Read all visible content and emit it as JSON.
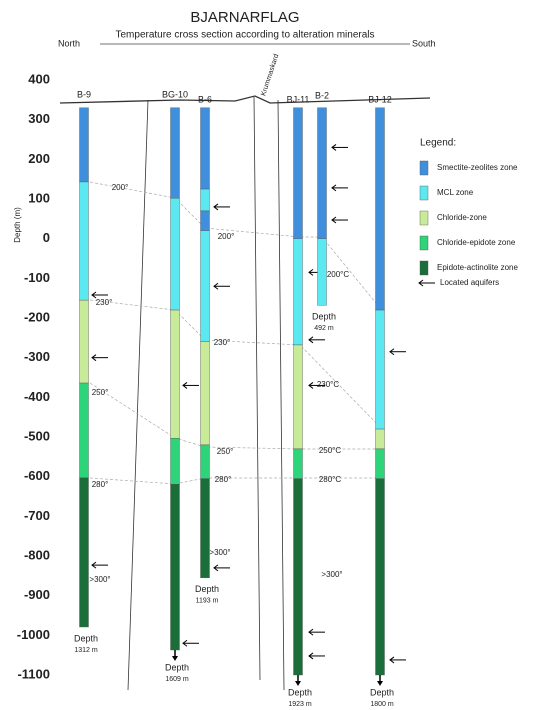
{
  "chart_data": {
    "type": "well-section",
    "title": "BJARNARFLAG",
    "subtitle": "Temperature cross section according to alteration minerals",
    "left_label": "North",
    "right_label": "South",
    "fault_label": "Krummaskard",
    "ylabel": "Depth (m)",
    "ylim": [
      -1100,
      400
    ],
    "yticks": [
      400,
      300,
      200,
      100,
      0,
      -100,
      -200,
      -300,
      -400,
      -500,
      -600,
      -700,
      -800,
      -900,
      -1000,
      -1100
    ],
    "legend_title": "Legend:",
    "zones": [
      {
        "name": "Smectite-zeolites zone",
        "color": "#3f8fdc"
      },
      {
        "name": "MCL zone",
        "color": "#5ce8f0"
      },
      {
        "name": "Chloride-zone",
        "color": "#c8eb9a"
      },
      {
        "name": "Chloride-epidote zone",
        "color": "#2ed47a"
      },
      {
        "name": "Epidote-actinolite zone",
        "color": "#1a6e3a"
      }
    ],
    "aquifer_label": "Located aquifers",
    "wells": [
      {
        "name": "B-9",
        "depth_word": "Depth",
        "total_depth": "1312 m",
        "arrow": false,
        "intervals": [
          {
            "top": 330,
            "bottom": 143,
            "color": "#3f8fdc"
          },
          {
            "top": 143,
            "bottom": -155,
            "color": "#5ce8f0"
          },
          {
            "top": -155,
            "bottom": -364,
            "color": "#c8eb9a"
          },
          {
            "top": -364,
            "bottom": -603,
            "color": "#2ed47a"
          },
          {
            "top": -603,
            "bottom": -979,
            "color": "#1a6e3a"
          }
        ],
        "aquifers": [
          -142,
          -300,
          -823
        ]
      },
      {
        "name": "BG-10",
        "depth_word": "Depth",
        "total_depth": "1609 m",
        "arrow": true,
        "intervals": [
          {
            "top": 330,
            "bottom": 102,
            "color": "#3f8fdc"
          },
          {
            "top": 102,
            "bottom": -180,
            "color": "#5ce8f0"
          },
          {
            "top": -180,
            "bottom": -503,
            "color": "#c8eb9a"
          },
          {
            "top": -503,
            "bottom": -619,
            "color": "#2ed47a"
          },
          {
            "top": -619,
            "bottom": -1037,
            "color": "#1a6e3a"
          }
        ],
        "aquifers": [
          -370,
          -1020
        ]
      },
      {
        "name": "B-6",
        "depth_word": "Depth",
        "total_depth": "1193 m",
        "arrow": false,
        "intervals": [
          {
            "top": 330,
            "bottom": 125,
            "color": "#3f8fdc"
          },
          {
            "top": 125,
            "bottom": 70,
            "color": "#5ce8f0"
          },
          {
            "top": 70,
            "bottom": 20,
            "color": "#3f8fdc"
          },
          {
            "top": 20,
            "bottom": -260,
            "color": "#5ce8f0"
          },
          {
            "top": -260,
            "bottom": -520,
            "color": "#c8eb9a"
          },
          {
            "top": -520,
            "bottom": -605,
            "color": "#2ed47a"
          },
          {
            "top": -605,
            "bottom": -855,
            "color": "#1a6e3a"
          }
        ],
        "aquifers": [
          80,
          -120,
          -830
        ]
      },
      {
        "name": "BJ-11",
        "depth_word": "Depth",
        "total_depth": "1923 m",
        "arrow": true,
        "intervals": [
          {
            "top": 330,
            "bottom": 0,
            "color": "#3f8fdc"
          },
          {
            "top": 0,
            "bottom": -268,
            "color": "#5ce8f0"
          },
          {
            "top": -268,
            "bottom": -530,
            "color": "#c8eb9a"
          },
          {
            "top": -530,
            "bottom": -605,
            "color": "#2ed47a"
          },
          {
            "top": -605,
            "bottom": -1100,
            "color": "#1a6e3a"
          }
        ],
        "aquifers": [
          -85,
          -255,
          -370,
          -992,
          -1052
        ]
      },
      {
        "name": "B-2",
        "depth_word": "Depth",
        "total_depth": "492 m",
        "arrow": false,
        "intervals": [
          {
            "top": 330,
            "bottom": 0,
            "color": "#3f8fdc"
          },
          {
            "top": 0,
            "bottom": -168,
            "color": "#5ce8f0"
          }
        ],
        "aquifers": [
          230,
          128,
          47
        ]
      },
      {
        "name": "BJ-12",
        "depth_word": "Depth",
        "total_depth": "1800 m",
        "arrow": true,
        "intervals": [
          {
            "top": 330,
            "bottom": -180,
            "color": "#3f8fdc"
          },
          {
            "top": -180,
            "bottom": -480,
            "color": "#5ce8f0"
          },
          {
            "top": -480,
            "bottom": -530,
            "color": "#c8eb9a"
          },
          {
            "top": -530,
            "bottom": -605,
            "color": "#2ed47a"
          },
          {
            "top": -605,
            "bottom": -1100,
            "color": "#1a6e3a"
          }
        ],
        "aquifers": [
          -285,
          -1062
        ]
      }
    ],
    "isotherm_labels": [
      "200°",
      "230°",
      "250°",
      "280°",
      ">300°",
      "200°",
      "230°",
      "250°",
      "280°",
      ">300°",
      "200°C",
      "230°C",
      "250°C",
      "280°C",
      ">300°"
    ]
  }
}
